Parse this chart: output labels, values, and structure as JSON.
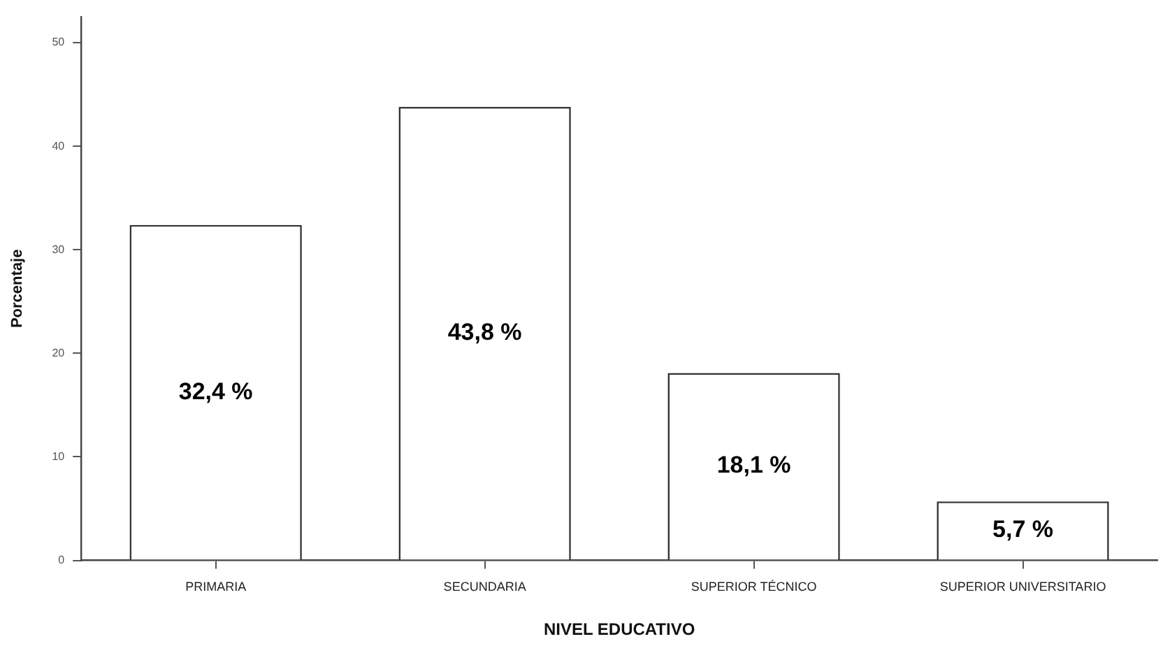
{
  "chart_data": {
    "type": "bar",
    "xlabel": "NIVEL EDUCATIVO",
    "ylabel": "Porcentaje",
    "categories": [
      "PRIMARIA",
      "SECUNDARIA",
      "SUPERIOR TÉCNICO",
      "SUPERIOR UNIVERSITARIO"
    ],
    "values": [
      32.4,
      43.8,
      18.1,
      5.7
    ],
    "value_labels": [
      "32,4 %",
      "43,8 %",
      "18,1 %",
      "5,7 %"
    ],
    "color": "#ffffff",
    "ylim": [
      0,
      52.5
    ],
    "yticks": [
      0,
      10,
      20,
      30,
      40,
      50
    ],
    "grid": false
  }
}
